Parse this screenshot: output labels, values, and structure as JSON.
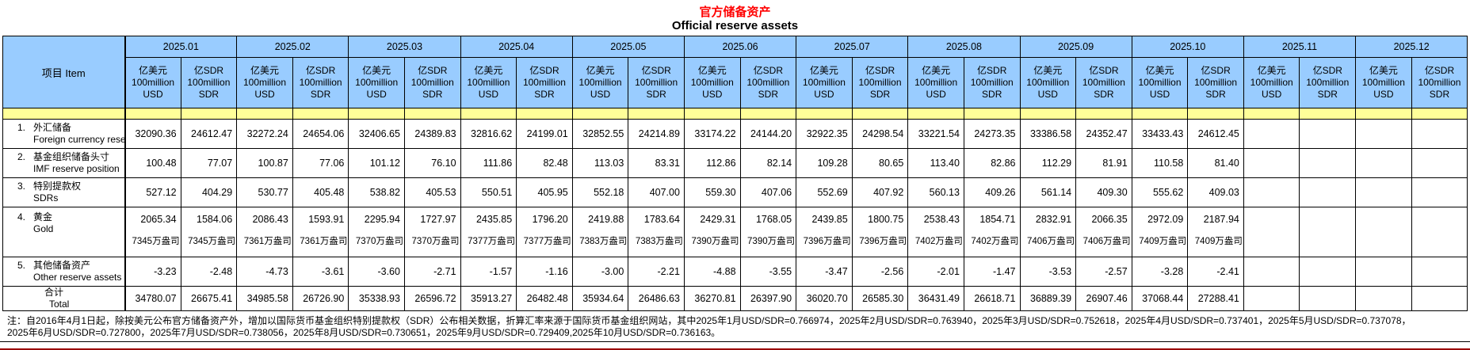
{
  "title": {
    "zh": "官方储备资产",
    "en": "Official reserve assets"
  },
  "colors": {
    "header_blue": "#99CCFF",
    "band_yellow": "#FFFF99",
    "title_red": "#FF0000",
    "bottom_edge_red": "#990000"
  },
  "item_header": "项目  Item",
  "months": [
    "2025.01",
    "2025.02",
    "2025.03",
    "2025.04",
    "2025.05",
    "2025.06",
    "2025.07",
    "2025.08",
    "2025.09",
    "2025.10",
    "2025.11",
    "2025.12"
  ],
  "units": {
    "usd": [
      "亿美元",
      "100million",
      "USD"
    ],
    "sdr": [
      "亿SDR",
      "100million",
      "SDR"
    ]
  },
  "rows": [
    {
      "no": "1.",
      "zh": "外汇储备",
      "en": "Foreign currency reserves",
      "values": [
        "32090.36",
        "24612.47",
        "32272.24",
        "24654.06",
        "32406.65",
        "24389.83",
        "32816.62",
        "24199.01",
        "32852.55",
        "24214.89",
        "33174.22",
        "24144.20",
        "32922.35",
        "24298.54",
        "33221.54",
        "24273.35",
        "33386.58",
        "24352.47",
        "33433.43",
        "24612.45",
        "",
        "",
        "",
        ""
      ]
    },
    {
      "no": "2.",
      "zh": "基金组织储备头寸",
      "en": "IMF reserve position",
      "values": [
        "100.48",
        "77.07",
        "100.87",
        "77.06",
        "101.12",
        "76.10",
        "111.86",
        "82.48",
        "113.03",
        "83.31",
        "112.86",
        "82.14",
        "109.28",
        "80.65",
        "113.40",
        "82.86",
        "112.29",
        "81.91",
        "110.58",
        "81.40",
        "",
        "",
        "",
        ""
      ]
    },
    {
      "no": "3.",
      "zh": "特别提款权",
      "en": "SDRs",
      "values": [
        "527.12",
        "404.29",
        "530.77",
        "405.48",
        "538.82",
        "405.53",
        "550.51",
        "405.95",
        "552.18",
        "407.00",
        "559.30",
        "407.06",
        "552.69",
        "407.92",
        "560.13",
        "409.26",
        "561.14",
        "409.30",
        "555.62",
        "409.03",
        "",
        "",
        "",
        ""
      ]
    },
    {
      "no": "4.",
      "zh": "黄金",
      "en": "Gold",
      "values": [
        "2065.34",
        "1584.06",
        "2086.43",
        "1593.91",
        "2295.94",
        "1727.97",
        "2435.85",
        "1796.20",
        "2419.88",
        "1783.64",
        "2429.31",
        "1768.05",
        "2439.85",
        "1800.75",
        "2538.43",
        "1854.71",
        "2832.91",
        "2066.35",
        "2972.09",
        "2187.94",
        "",
        "",
        "",
        ""
      ],
      "sub_values": [
        "7345万盎司",
        "7345万盎司",
        "7361万盎司",
        "7361万盎司",
        "7370万盎司",
        "7370万盎司",
        "7377万盎司",
        "7377万盎司",
        "7383万盎司",
        "7383万盎司",
        "7390万盎司",
        "7390万盎司",
        "7396万盎司",
        "7396万盎司",
        "7402万盎司",
        "7402万盎司",
        "7406万盎司",
        "7406万盎司",
        "7409万盎司",
        "7409万盎司",
        "",
        "",
        "",
        ""
      ]
    },
    {
      "no": "5.",
      "zh": "其他储备资产",
      "en": "Other reserve assets",
      "values": [
        "-3.23",
        "-2.48",
        "-4.73",
        "-3.61",
        "-3.60",
        "-2.71",
        "-1.57",
        "-1.16",
        "-3.00",
        "-2.21",
        "-4.88",
        "-3.55",
        "-3.47",
        "-2.56",
        "-2.01",
        "-1.47",
        "-3.53",
        "-2.57",
        "-3.28",
        "-2.41",
        "",
        "",
        "",
        ""
      ]
    },
    {
      "no": "",
      "zh": "合计",
      "en": "Total",
      "values": [
        "34780.07",
        "26675.41",
        "34985.58",
        "26726.90",
        "35338.93",
        "26596.72",
        "35913.27",
        "26482.48",
        "35934.64",
        "26486.63",
        "36270.81",
        "26397.90",
        "36020.70",
        "26585.30",
        "36431.49",
        "26618.71",
        "36889.39",
        "26907.46",
        "37068.44",
        "27288.41",
        "",
        "",
        "",
        ""
      ]
    }
  ],
  "note": {
    "line1": "注：自2016年4月1日起，除按美元公布官方储备资产外，增加以国际货币基金组织特别提款权（SDR）公布相关数据，折算汇率来源于国际货币基金组织网站，其中2025年1月USD/SDR=0.766974，2025年2月USD/SDR=0.763940，2025年3月USD/SDR=0.752618，2025年4月USD/SDR=0.737401，2025年5月USD/SDR=0.737078，",
    "line2": "2025年6月USD/SDR=0.727800，2025年7月USD/SDR=0.738056，2025年8月USD/SDR=0.730651，2025年9月USD/SDR=0.729409,2025年10月USD/SDR=0.736163。"
  }
}
